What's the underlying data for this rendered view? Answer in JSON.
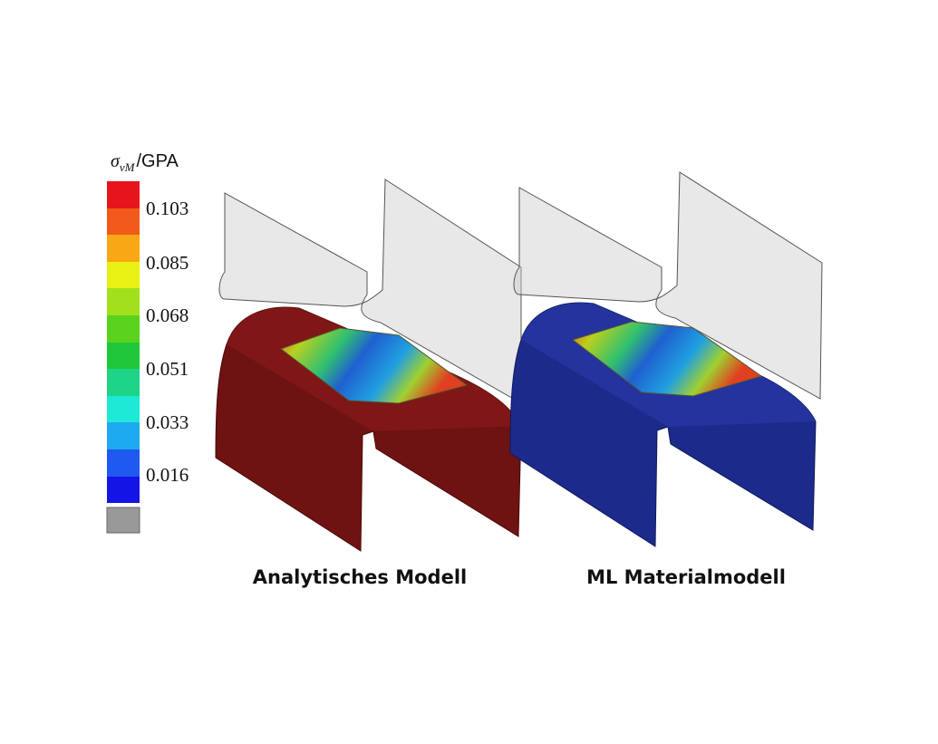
{
  "legend": {
    "title_symbol": "σ",
    "title_subscript": "vM",
    "title_unit": "/GPA",
    "labels": [
      "0.103",
      "0.085",
      "0.068",
      "0.051",
      "0.033",
      "0.016"
    ]
  },
  "captions": [
    "Analytisches Modell",
    "ML Materialmodell"
  ]
}
